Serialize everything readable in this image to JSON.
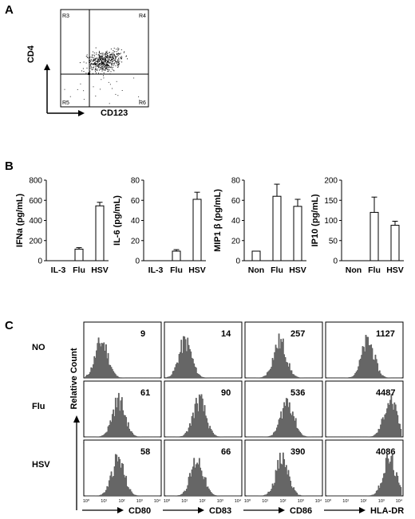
{
  "panels": {
    "a": "A",
    "b": "B",
    "c": "C"
  },
  "panel_a": {
    "ylabel": "CD4",
    "xlabel": "CD123",
    "quadrants": [
      "R3",
      "R4",
      "R5",
      "R6"
    ]
  },
  "colors": {
    "ink": "#000000",
    "histogram_fill": "#666666",
    "bar_fill": "#ffffff"
  },
  "chart_data": [
    {
      "type": "bar",
      "ylabel": "IFNa (pg/mL)",
      "categories": [
        "IL-3",
        "Flu",
        "HSV"
      ],
      "values": [
        0,
        115,
        545
      ],
      "errors": [
        0,
        15,
        35
      ],
      "ylim": [
        0,
        800
      ],
      "yticks": [
        "0",
        "200",
        "400",
        "600",
        "800"
      ]
    },
    {
      "type": "bar",
      "ylabel": "IL-6 (pg/mL)",
      "categories": [
        "IL-3",
        "Flu",
        "HSV"
      ],
      "values": [
        0,
        9.5,
        61
      ],
      "errors": [
        0,
        1.5,
        7
      ],
      "ylim": [
        0,
        80
      ],
      "yticks": [
        "0",
        "20",
        "40",
        "60",
        "80"
      ]
    },
    {
      "type": "bar",
      "ylabel": "MIP1 β (pg/mL)",
      "categories": [
        "Non",
        "Flu",
        "HSV"
      ],
      "values": [
        9.5,
        64,
        54
      ],
      "errors": [
        0,
        12,
        7
      ],
      "ylim": [
        0,
        80
      ],
      "yticks": [
        "0",
        "20",
        "40",
        "60",
        "80"
      ]
    },
    {
      "type": "bar",
      "ylabel": "IP10 (pg/mL)",
      "categories": [
        "Non",
        "Flu",
        "HSV"
      ],
      "values": [
        0,
        120,
        88
      ],
      "errors": [
        0,
        38,
        10
      ],
      "ylim": [
        0,
        200
      ],
      "yticks": [
        "0",
        "50",
        "100",
        "150",
        "200"
      ]
    }
  ],
  "panel_c": {
    "ylabel": "Relative Count",
    "rows": [
      "NO",
      "Flu",
      "HSV"
    ],
    "markers": [
      "CD80",
      "CD83",
      "CD86",
      "HLA-DR"
    ],
    "mfi": [
      [
        "9",
        "14",
        "257",
        "1127"
      ],
      [
        "61",
        "90",
        "536",
        "4487"
      ],
      [
        "58",
        "66",
        "390",
        "4086"
      ]
    ],
    "decade_labels": [
      "10⁰",
      "10¹",
      "10²",
      "10³",
      "10⁴"
    ]
  }
}
